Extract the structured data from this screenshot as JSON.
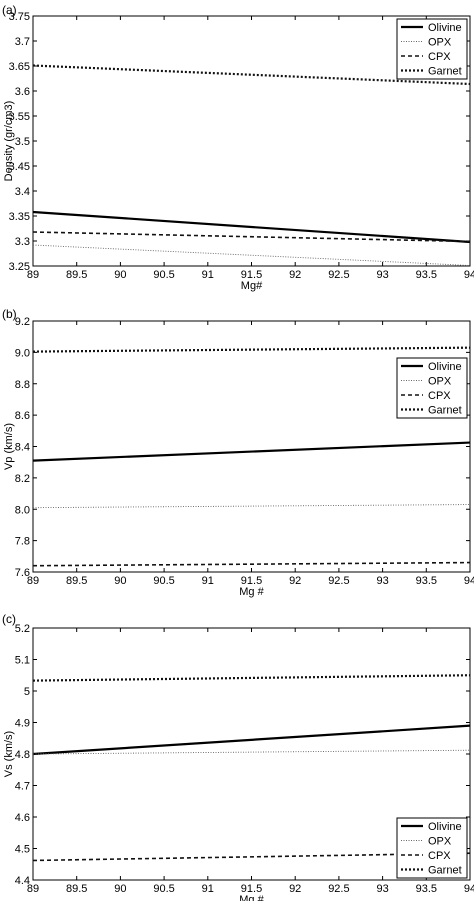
{
  "panels": [
    {
      "label": "(a)"
    },
    {
      "label": "(b)"
    },
    {
      "label": "(c)"
    }
  ],
  "chart_data": [
    {
      "type": "line",
      "title": "",
      "xlabel": "Mg#",
      "ylabel": "Density (gr/cm3)",
      "xlim": [
        89,
        94
      ],
      "ylim": [
        3.25,
        3.75
      ],
      "xticks": [
        "89",
        "89.5",
        "90",
        "90.5",
        "91",
        "91.5",
        "92",
        "92.5",
        "93",
        "93.5",
        "94"
      ],
      "yticks": [
        "3.25",
        "3.3",
        "3.35",
        "3.4",
        "3.45",
        "3.5",
        "3.55",
        "3.6",
        "3.65",
        "3.7",
        "3.75"
      ],
      "grid": false,
      "legend_position": "top-right",
      "x": [
        89,
        94
      ],
      "series": [
        {
          "name": "Olivine",
          "style": "solid",
          "values": [
            3.358,
            3.298
          ]
        },
        {
          "name": "OPX",
          "style": "dotted",
          "values": [
            3.292,
            3.251
          ]
        },
        {
          "name": "CPX",
          "style": "dashed",
          "values": [
            3.318,
            3.299
          ]
        },
        {
          "name": "Garnet",
          "style": "dash-dot",
          "values": [
            3.651,
            3.614
          ]
        }
      ]
    },
    {
      "type": "line",
      "title": "",
      "xlabel": "Mg #",
      "ylabel": "Vp (km/s)",
      "xlim": [
        89,
        94
      ],
      "ylim": [
        7.6,
        9.2
      ],
      "xticks": [
        "89",
        "89.5",
        "90",
        "90.5",
        "91",
        "91.5",
        "92",
        "92.5",
        "93",
        "93.5",
        "94"
      ],
      "yticks": [
        "7.6",
        "7.8",
        "8.0",
        "8.2",
        "8.4",
        "8.6",
        "8.8",
        "9.0",
        "9.2"
      ],
      "grid": false,
      "legend_position": "right",
      "x": [
        89,
        94
      ],
      "series": [
        {
          "name": "Olivine",
          "style": "solid",
          "values": [
            8.31,
            8.425
          ]
        },
        {
          "name": "OPX",
          "style": "dotted",
          "values": [
            8.01,
            8.03
          ]
        },
        {
          "name": "CPX",
          "style": "dashed",
          "values": [
            7.64,
            7.66
          ]
        },
        {
          "name": "Garnet",
          "style": "dash-dot",
          "values": [
            9.005,
            9.03
          ]
        }
      ]
    },
    {
      "type": "line",
      "title": "",
      "xlabel": "Mg #",
      "ylabel": "Vs (km/s)",
      "xlim": [
        89,
        94
      ],
      "ylim": [
        4.4,
        5.2
      ],
      "xticks": [
        "89",
        "89.5",
        "90",
        "90.5",
        "91",
        "91.5",
        "92",
        "92.5",
        "93",
        "93.5",
        "94"
      ],
      "yticks": [
        "4.4",
        "4.5",
        "4.6",
        "4.7",
        "4.8",
        "4.9",
        "5",
        "5.1",
        "5.2"
      ],
      "grid": false,
      "legend_position": "bottom-right",
      "x": [
        89,
        94
      ],
      "series": [
        {
          "name": "Olivine",
          "style": "solid",
          "values": [
            4.8,
            4.89
          ]
        },
        {
          "name": "OPX",
          "style": "dotted",
          "values": [
            4.8,
            4.812
          ]
        },
        {
          "name": "CPX",
          "style": "dashed",
          "values": [
            4.462,
            4.485
          ]
        },
        {
          "name": "Garnet",
          "style": "dash-dot",
          "values": [
            5.033,
            5.05
          ]
        }
      ]
    }
  ]
}
